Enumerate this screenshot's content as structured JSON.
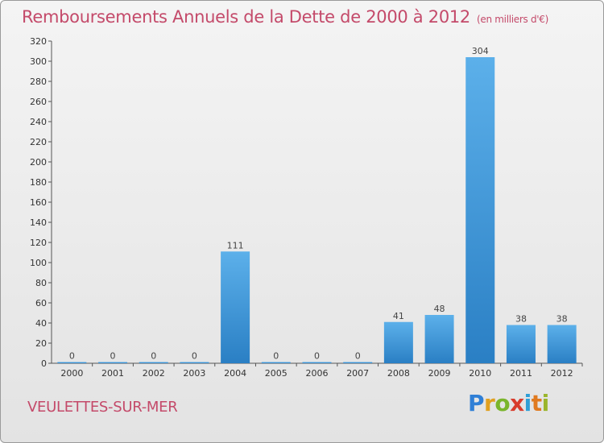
{
  "chart_data": {
    "type": "bar",
    "title": "Remboursements Annuels de la Dette de 2000 à 2012",
    "unit_note": "(en milliers d'€)",
    "categories": [
      "2000",
      "2001",
      "2002",
      "2003",
      "2004",
      "2005",
      "2006",
      "2007",
      "2008",
      "2009",
      "2010",
      "2011",
      "2012"
    ],
    "values": [
      0,
      0,
      0,
      0,
      111,
      0,
      0,
      0,
      41,
      48,
      304,
      38,
      38
    ],
    "data_labels": [
      "0",
      "0",
      "0",
      "0",
      "111",
      "0",
      "0",
      "0",
      "41",
      "48",
      "304",
      "38",
      "38"
    ],
    "ylim": [
      0,
      320
    ],
    "yticks": [
      0,
      20,
      40,
      60,
      80,
      100,
      120,
      140,
      160,
      180,
      200,
      220,
      240,
      260,
      280,
      300,
      320
    ],
    "xlabel": "",
    "ylabel": "",
    "grid": false,
    "bar_color": "#3a8fd0",
    "bar_color_light": "#5cb0ea"
  },
  "footer": {
    "town": "VEULETTES-SUR-MER",
    "logo": [
      "P",
      "r",
      "o",
      "x",
      "i",
      "t",
      "i"
    ]
  }
}
